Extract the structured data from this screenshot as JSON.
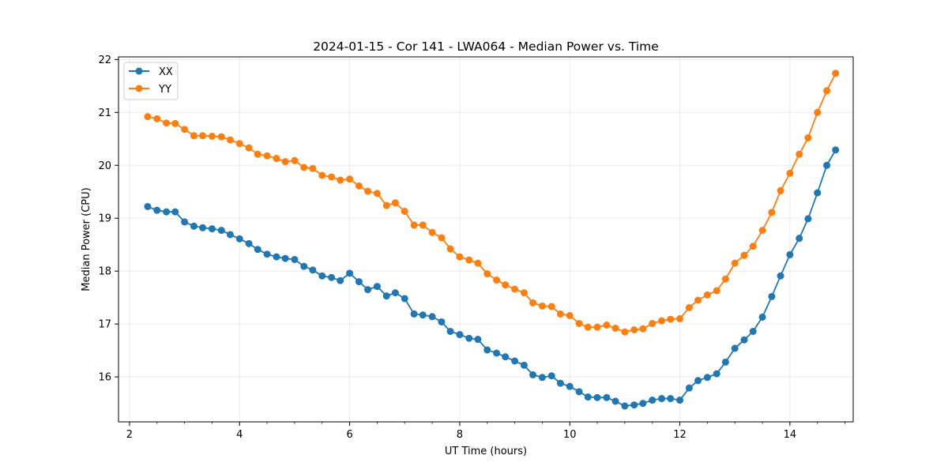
{
  "chart_data": {
    "type": "line",
    "title": "2024-01-15 - Cor 141 - LWA064 - Median Power vs. Time",
    "xlabel": "UT Time (hours)",
    "ylabel": "Median Power (CPU)",
    "xlim": [
      1.8,
      15.15
    ],
    "ylim": [
      15.15,
      22.05
    ],
    "xticks": [
      2,
      4,
      6,
      8,
      10,
      12,
      14
    ],
    "yticks": [
      16,
      17,
      18,
      19,
      20,
      21,
      22
    ],
    "grid": true,
    "legend_position": "top-left",
    "x": [
      2.33,
      2.5,
      2.67,
      2.83,
      3.0,
      3.17,
      3.33,
      3.5,
      3.67,
      3.83,
      4.0,
      4.17,
      4.33,
      4.5,
      4.67,
      4.83,
      5.0,
      5.17,
      5.33,
      5.5,
      5.67,
      5.83,
      6.0,
      6.17,
      6.33,
      6.5,
      6.67,
      6.83,
      7.0,
      7.17,
      7.33,
      7.5,
      7.67,
      7.83,
      8.0,
      8.17,
      8.33,
      8.5,
      8.67,
      8.83,
      9.0,
      9.17,
      9.33,
      9.5,
      9.67,
      9.83,
      10.0,
      10.17,
      10.33,
      10.5,
      10.67,
      10.83,
      11.0,
      11.17,
      11.33,
      11.5,
      11.67,
      11.83,
      12.0,
      12.17,
      12.33,
      12.5,
      12.67,
      12.83,
      13.0,
      13.17,
      13.33,
      13.5,
      13.67,
      13.83,
      14.0,
      14.17,
      14.33,
      14.5,
      14.67,
      14.83
    ],
    "series": [
      {
        "name": "XX",
        "color": "#1f77b4",
        "values": [
          19.22,
          19.15,
          19.12,
          19.12,
          18.93,
          18.85,
          18.82,
          18.8,
          18.77,
          18.69,
          18.61,
          18.52,
          18.41,
          18.32,
          18.27,
          18.24,
          18.22,
          18.09,
          18.02,
          17.91,
          17.88,
          17.82,
          17.96,
          17.8,
          17.65,
          17.71,
          17.53,
          17.59,
          17.48,
          17.19,
          17.17,
          17.14,
          17.04,
          16.86,
          16.8,
          16.73,
          16.71,
          16.51,
          16.45,
          16.38,
          16.3,
          16.22,
          16.04,
          15.99,
          16.02,
          15.88,
          15.82,
          15.72,
          15.62,
          15.61,
          15.61,
          15.54,
          15.45,
          15.47,
          15.5,
          15.56,
          15.59,
          15.59,
          15.56,
          15.79,
          15.93,
          15.99,
          16.06,
          16.28,
          16.54,
          16.7,
          16.86,
          17.13,
          17.52,
          17.91,
          18.31,
          18.62,
          18.99,
          19.48,
          20.0,
          20.29
        ]
      },
      {
        "name": "YY",
        "color": "#ff7f0e",
        "values": [
          20.92,
          20.88,
          20.8,
          20.79,
          20.68,
          20.56,
          20.56,
          20.55,
          20.54,
          20.48,
          20.41,
          20.33,
          20.21,
          20.18,
          20.13,
          20.07,
          20.09,
          19.96,
          19.94,
          19.81,
          19.78,
          19.72,
          19.74,
          19.61,
          19.51,
          19.47,
          19.24,
          19.29,
          19.13,
          18.87,
          18.87,
          18.73,
          18.63,
          18.42,
          18.27,
          18.21,
          18.15,
          17.95,
          17.83,
          17.74,
          17.66,
          17.59,
          17.4,
          17.34,
          17.33,
          17.19,
          17.16,
          17.01,
          16.94,
          16.94,
          16.98,
          16.92,
          16.85,
          16.89,
          16.91,
          17.01,
          17.06,
          17.09,
          17.1,
          17.31,
          17.45,
          17.55,
          17.63,
          17.85,
          18.15,
          18.3,
          18.47,
          18.77,
          19.11,
          19.52,
          19.85,
          20.21,
          20.52,
          21.0,
          21.41,
          21.74
        ]
      }
    ]
  }
}
